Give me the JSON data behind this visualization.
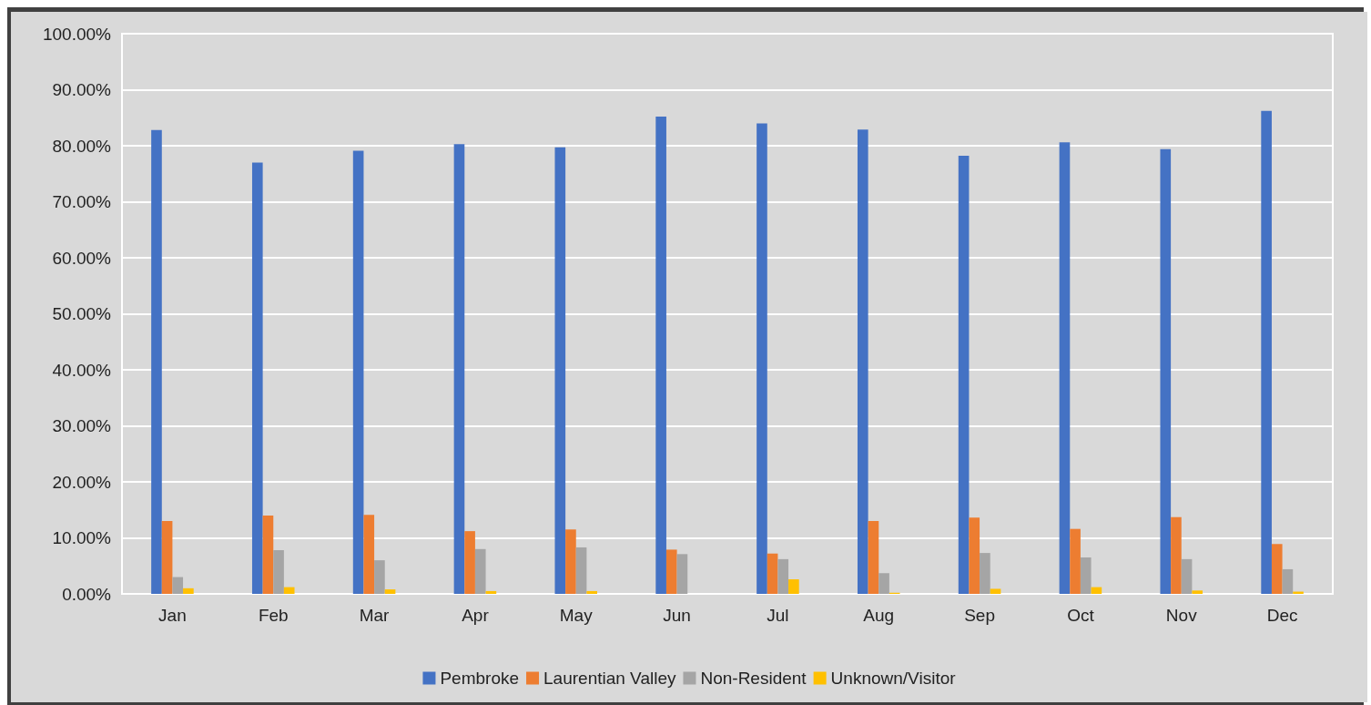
{
  "chart_data": {
    "type": "bar",
    "categories": [
      "Jan",
      "Feb",
      "Mar",
      "Apr",
      "May",
      "Jun",
      "Jul",
      "Aug",
      "Sep",
      "Oct",
      "Nov",
      "Dec"
    ],
    "series": [
      {
        "name": "Pembroke",
        "color": "#4472c4",
        "values": [
          82.8,
          77.0,
          79.1,
          80.3,
          79.7,
          85.2,
          84.0,
          82.9,
          78.2,
          80.6,
          79.4,
          86.2
        ]
      },
      {
        "name": "Laurentian Valley",
        "color": "#ed7d31",
        "values": [
          13.0,
          14.0,
          14.1,
          11.2,
          11.5,
          7.9,
          7.2,
          13.0,
          13.6,
          11.6,
          13.7,
          8.9
        ]
      },
      {
        "name": "Non-Resident",
        "color": "#a5a5a5",
        "values": [
          3.0,
          7.8,
          6.0,
          8.0,
          8.3,
          7.1,
          6.2,
          3.7,
          7.3,
          6.5,
          6.2,
          4.4
        ]
      },
      {
        "name": "Unknown/Visitor",
        "color": "#ffc000",
        "values": [
          1.0,
          1.2,
          0.8,
          0.5,
          0.5,
          0,
          2.6,
          0.2,
          0.9,
          1.2,
          0.6,
          0.4
        ]
      }
    ],
    "ylim": [
      0,
      100
    ],
    "yticks": [
      {
        "value": 0,
        "label": "0.00%"
      },
      {
        "value": 10,
        "label": "10.00%"
      },
      {
        "value": 20,
        "label": "20.00%"
      },
      {
        "value": 30,
        "label": "30.00%"
      },
      {
        "value": 40,
        "label": "40.00%"
      },
      {
        "value": 50,
        "label": "50.00%"
      },
      {
        "value": 60,
        "label": "60.00%"
      },
      {
        "value": 70,
        "label": "70.00%"
      },
      {
        "value": 80,
        "label": "80.00%"
      },
      {
        "value": 90,
        "label": "90.00%"
      },
      {
        "value": 100,
        "label": "100.00%"
      }
    ],
    "grid": "y",
    "legend": "bottom"
  }
}
